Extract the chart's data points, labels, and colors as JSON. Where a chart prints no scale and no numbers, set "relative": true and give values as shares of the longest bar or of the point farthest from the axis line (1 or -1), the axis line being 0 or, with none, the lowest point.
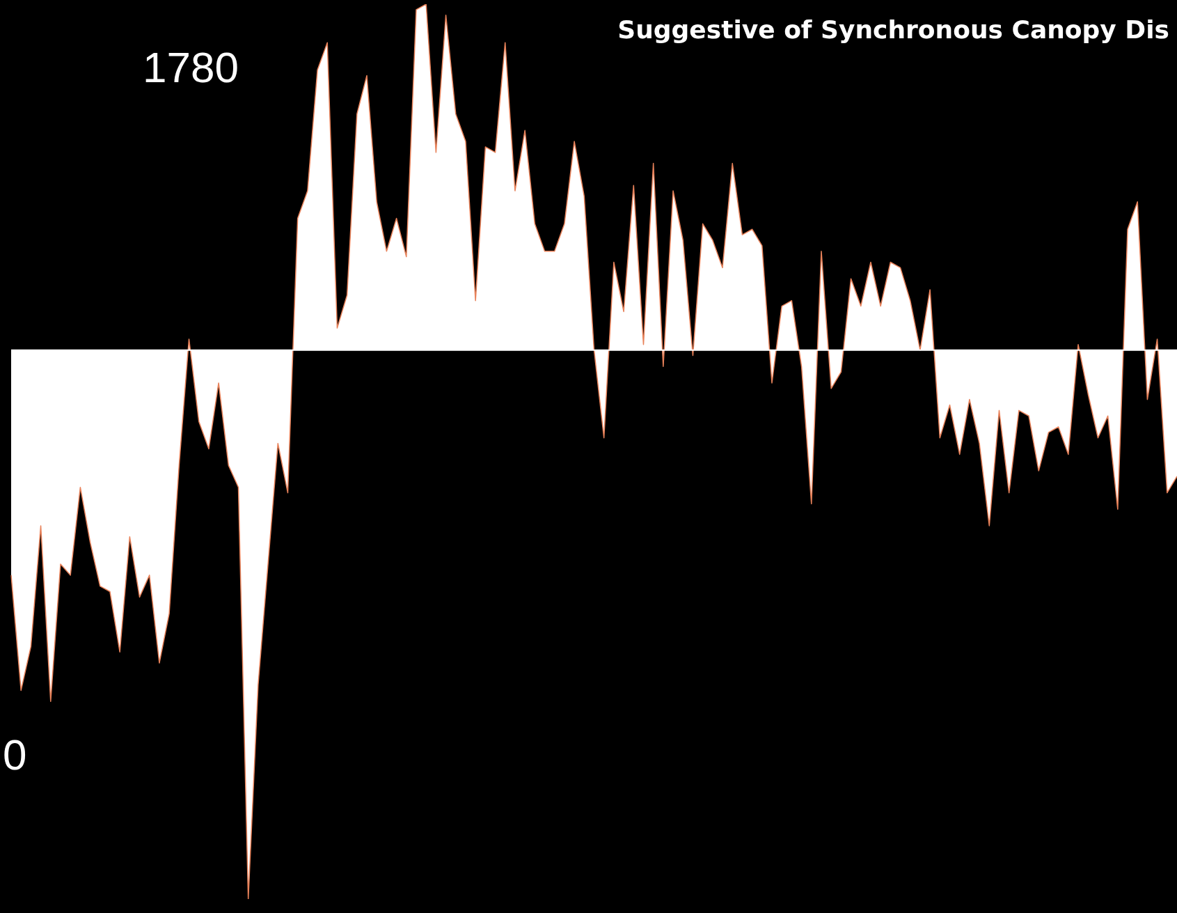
{
  "chart_data": {
    "type": "area",
    "relative": true,
    "title": "Suggestive of Synchronous Canopy Dis",
    "annotations": [
      "1780",
      "0"
    ],
    "categories": [
      null,
      null,
      null,
      null,
      null,
      null,
      null,
      null,
      null,
      null,
      null,
      null,
      null,
      null,
      null,
      null,
      null,
      null,
      null,
      null,
      null,
      null,
      null,
      null,
      null,
      null,
      null,
      null,
      null,
      null,
      null,
      null,
      null,
      null,
      null,
      null,
      null,
      null,
      null,
      null,
      null,
      null,
      null,
      null,
      null,
      null,
      null,
      null,
      null,
      null,
      null,
      null,
      null,
      null,
      null,
      null,
      null,
      null,
      null,
      null,
      null,
      null,
      null,
      null,
      null,
      null,
      null,
      null,
      null,
      null,
      null,
      null,
      null,
      null,
      null,
      null,
      null,
      null,
      null,
      null,
      null,
      null,
      null,
      null,
      null,
      null,
      null,
      null,
      null,
      null,
      null,
      null,
      null,
      null,
      null,
      null,
      null,
      null,
      null,
      null,
      null,
      null,
      null,
      null,
      null,
      null,
      null,
      null,
      null,
      null,
      null,
      null,
      null,
      null,
      null,
      null,
      null,
      null,
      null
    ],
    "series": [
      {
        "color": "#ffffff",
        "values": [
          -0.41,
          -0.62,
          -0.54,
          -0.32,
          -0.64,
          -0.39,
          -0.41,
          -0.25,
          -0.35,
          -0.43,
          -0.44,
          -0.55,
          -0.34,
          -0.45,
          -0.41,
          -0.57,
          -0.48,
          -0.21,
          0.02,
          -0.13,
          -0.18,
          -0.06,
          -0.21,
          -0.25,
          -1,
          -0.61,
          -0.39,
          -0.17,
          -0.26,
          0.24,
          0.29,
          0.51,
          0.56,
          0.04,
          0.1,
          0.43,
          0.5,
          0.27,
          0.18,
          0.24,
          0.17,
          0.62,
          0.63,
          0.36,
          0.61,
          0.43,
          0.38,
          0.09,
          0.37,
          0.36,
          0.56,
          0.29,
          0.4,
          0.23,
          0.18,
          0.18,
          0.23,
          0.38,
          0.28,
          0,
          -0.16,
          0.16,
          0.07,
          0.3,
          0.01,
          0.34,
          -0.03,
          0.29,
          0.2,
          -0.01,
          0.23,
          0.2,
          0.15,
          0.34,
          0.21,
          0.22,
          0.19,
          -0.06,
          0.08,
          0.09,
          -0.03,
          -0.28,
          0.18,
          -0.07,
          -0.04,
          0.13,
          0.08,
          0.16,
          0.08,
          0.16,
          0.15,
          0.09,
          0,
          0.11,
          -0.16,
          -0.1,
          -0.19,
          -0.09,
          -0.17,
          -0.32,
          -0.11,
          -0.26,
          -0.11,
          -0.12,
          -0.22,
          -0.15,
          -0.14,
          -0.19,
          0.01,
          -0.08,
          -0.16,
          -0.12,
          -0.29,
          0.22,
          0.27,
          -0.09,
          0.02,
          -0.26,
          -0.23
        ]
      }
    ]
  }
}
